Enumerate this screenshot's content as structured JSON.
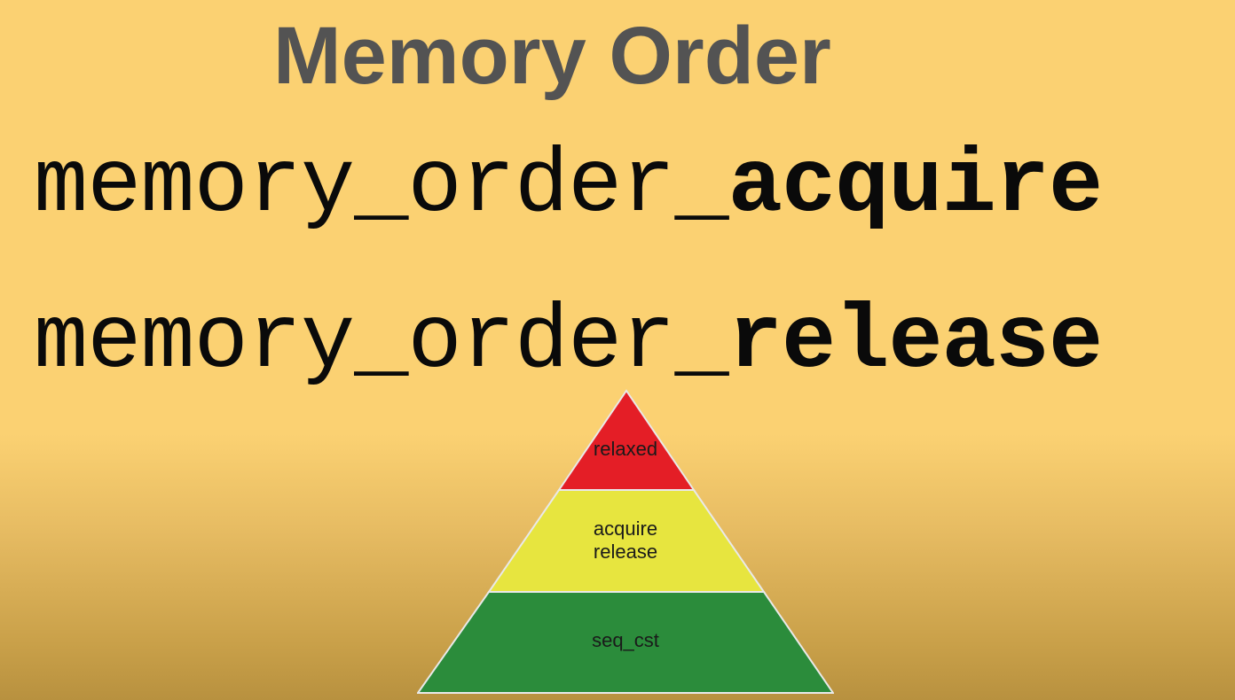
{
  "slide": {
    "title": "Memory Order",
    "lines": [
      {
        "prefix": "memory_order_",
        "emphasis": "acquire"
      },
      {
        "prefix": "memory_order_",
        "emphasis": "release"
      }
    ]
  },
  "pyramid": {
    "tiers": [
      {
        "id": "top",
        "lines": [
          "relaxed"
        ],
        "color": "#e41e26"
      },
      {
        "id": "middle",
        "lines": [
          "acquire",
          "release"
        ],
        "color": "#e7e53f"
      },
      {
        "id": "bottom",
        "lines": [
          "seq_cst"
        ],
        "color": "#2b8c3b"
      }
    ]
  },
  "colors": {
    "background": "#fbd172",
    "title": "#535353",
    "code_text": "#0a0a0a"
  }
}
